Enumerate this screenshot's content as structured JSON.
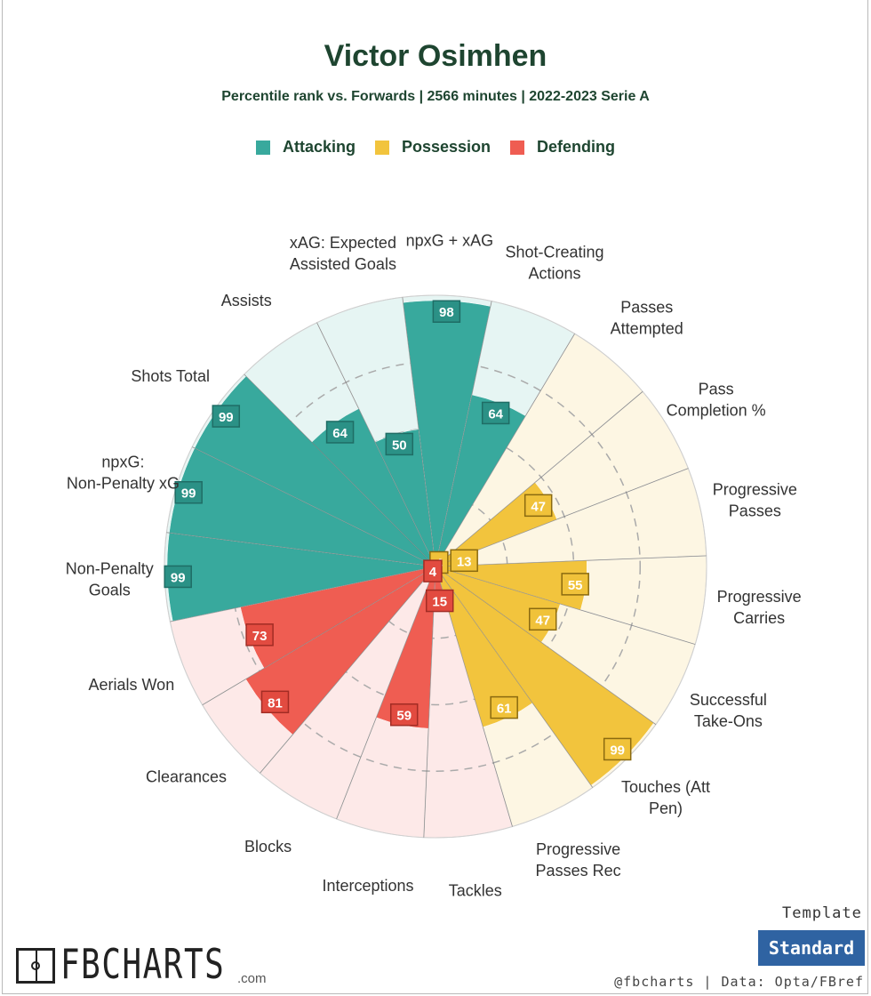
{
  "title": "Victor Osimhen",
  "subtitle": "Percentile rank vs. Forwards | 2566 minutes | 2022-2023 Serie A",
  "legend": [
    {
      "label": "Attacking",
      "color": "#38a99d"
    },
    {
      "label": "Possession",
      "color": "#f2c43d"
    },
    {
      "label": "Defending",
      "color": "#ef5d52"
    }
  ],
  "chart_data": {
    "type": "radar-bar",
    "scale": [
      0,
      100
    ],
    "gridlines": [
      25,
      50,
      75
    ],
    "categories": [
      {
        "label": "npxG + xAG",
        "value": 98,
        "group": "Attacking"
      },
      {
        "label": "Shot-Creating Actions",
        "value": 64,
        "group": "Attacking"
      },
      {
        "label": "Passes Attempted",
        "value": 4,
        "group": "Possession"
      },
      {
        "label": "Pass Completion %",
        "value": 47,
        "group": "Possession"
      },
      {
        "label": "Progressive Passes",
        "value": 13,
        "group": "Possession"
      },
      {
        "label": "Progressive Carries",
        "value": 55,
        "group": "Possession"
      },
      {
        "label": "Successful Take-Ons",
        "value": 47,
        "group": "Possession"
      },
      {
        "label": "Touches (Att Pen)",
        "value": 99,
        "group": "Possession"
      },
      {
        "label": "Progressive Passes Rec",
        "value": 61,
        "group": "Possession"
      },
      {
        "label": "Tackles",
        "value": 15,
        "group": "Defending"
      },
      {
        "label": "Interceptions",
        "value": 59,
        "group": "Defending"
      },
      {
        "label": "Blocks",
        "value": 4,
        "group": "Defending"
      },
      {
        "label": "Clearances",
        "value": 81,
        "group": "Defending"
      },
      {
        "label": "Aerials Won",
        "value": 73,
        "group": "Defending"
      },
      {
        "label": "Non-Penalty Goals",
        "value": 99,
        "group": "Attacking"
      },
      {
        "label": "npxG: Non-Penalty xG",
        "value": 99,
        "group": "Attacking"
      },
      {
        "label": "Shots Total",
        "value": 99,
        "group": "Attacking"
      },
      {
        "label": "Assists",
        "value": 64,
        "group": "Attacking"
      },
      {
        "label": "xAG: Expected Assisted Goals",
        "value": 50,
        "group": "Attacking"
      }
    ]
  },
  "template": {
    "label": "Template",
    "button": "Standard"
  },
  "credit": "@fbcharts | Data: Opta/FBref",
  "logo": {
    "text": "FBCHARTS",
    "domain": ".com"
  }
}
